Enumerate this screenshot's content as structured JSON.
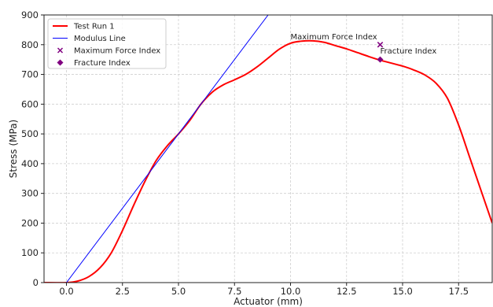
{
  "chart_data": {
    "type": "line",
    "xlabel": "Actuator (mm)",
    "ylabel": "Stress (MPa)",
    "xlim": [
      -1,
      19
    ],
    "ylim": [
      0,
      900
    ],
    "xticks": [
      0.0,
      2.5,
      5.0,
      7.5,
      10.0,
      12.5,
      15.0,
      17.5
    ],
    "xtick_labels": [
      "0.0",
      "2.5",
      "5.0",
      "7.5",
      "10.0",
      "12.5",
      "15.0",
      "17.5"
    ],
    "yticks": [
      0,
      100,
      200,
      300,
      400,
      500,
      600,
      700,
      800,
      900
    ],
    "ytick_labels": [
      "0",
      "100",
      "200",
      "300",
      "400",
      "500",
      "600",
      "700",
      "800",
      "900"
    ],
    "grid": true,
    "legend_position": "top-left",
    "series": [
      {
        "name": "Test Run 1",
        "kind": "line",
        "color": "#ff0000",
        "x": [
          -1,
          0,
          0.5,
          1.0,
          1.5,
          2.0,
          2.5,
          3.0,
          3.5,
          4.0,
          4.5,
          5.0,
          5.5,
          6.0,
          6.5,
          7.0,
          7.5,
          8.0,
          8.5,
          9.0,
          9.5,
          10.0,
          10.5,
          11.0,
          11.5,
          12.0,
          12.5,
          13.0,
          13.5,
          14.0,
          14.5,
          15.0,
          15.5,
          16.0,
          16.5,
          17.0,
          17.5,
          18.0,
          18.5,
          19.0
        ],
        "y": [
          0,
          0,
          5,
          20,
          50,
          100,
          175,
          260,
          340,
          410,
          460,
          500,
          545,
          600,
          640,
          665,
          682,
          700,
          725,
          755,
          785,
          805,
          812,
          813,
          808,
          797,
          786,
          773,
          760,
          748,
          738,
          728,
          715,
          698,
          670,
          620,
          530,
          420,
          310,
          200
        ]
      },
      {
        "name": "Modulus Line",
        "kind": "line",
        "color": "#0000ff",
        "x": [
          0,
          9.0
        ],
        "y": [
          0,
          900
        ]
      },
      {
        "name": "Maximum Force Index",
        "kind": "marker",
        "marker": "x",
        "color": "#800080",
        "x": [
          14.0
        ],
        "y": [
          800
        ]
      },
      {
        "name": "Fracture Index",
        "kind": "marker",
        "marker": "diamond",
        "color": "#800080",
        "x": [
          14.0
        ],
        "y": [
          750
        ]
      }
    ],
    "annotations": [
      {
        "text": "Maximum Force Index",
        "x": 10.0,
        "y": 818
      },
      {
        "text": "Fracture Index",
        "x": 14.0,
        "y": 770
      }
    ]
  }
}
